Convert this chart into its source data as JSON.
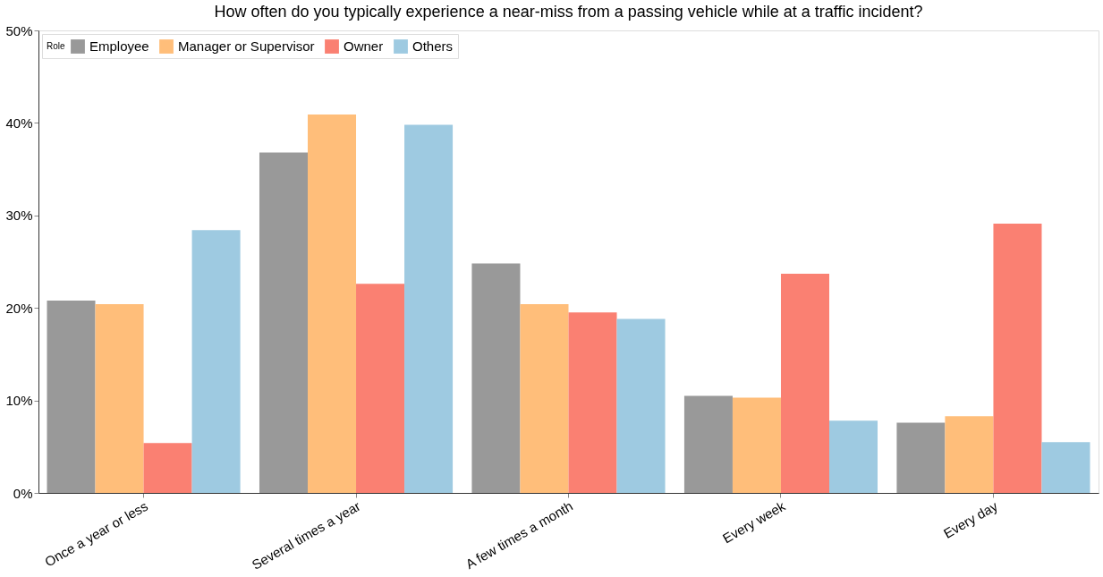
{
  "chart_data": {
    "type": "bar",
    "title": "How often do you typically experience a near-miss from a passing vehicle while at a traffic incident?",
    "categories": [
      "Once a year or less",
      "Several times a year",
      "A few times a month",
      "Every week",
      "Every day"
    ],
    "legend_title": "Role",
    "series": [
      {
        "name": "Employee",
        "color": "#999999",
        "values": [
          20.8,
          36.8,
          24.8,
          10.5,
          7.6
        ]
      },
      {
        "name": "Manager or Supervisor",
        "color": "#ffbe7a",
        "values": [
          20.4,
          40.9,
          20.4,
          10.3,
          8.3
        ]
      },
      {
        "name": "Owner",
        "color": "#fa8072",
        "values": [
          5.4,
          22.6,
          19.5,
          23.7,
          29.1
        ]
      },
      {
        "name": "Others",
        "color": "#9ecae1",
        "values": [
          28.4,
          39.8,
          18.8,
          7.8,
          5.5
        ]
      }
    ],
    "ylim": [
      0,
      50
    ],
    "yticks": [
      {
        "value": 0,
        "label": "0%"
      },
      {
        "value": 10,
        "label": "10%"
      },
      {
        "value": 20,
        "label": "20%"
      },
      {
        "value": 30,
        "label": "30%"
      },
      {
        "value": 40,
        "label": "40%"
      },
      {
        "value": 50,
        "label": "50%"
      }
    ],
    "grid": false,
    "legend": "top left"
  }
}
